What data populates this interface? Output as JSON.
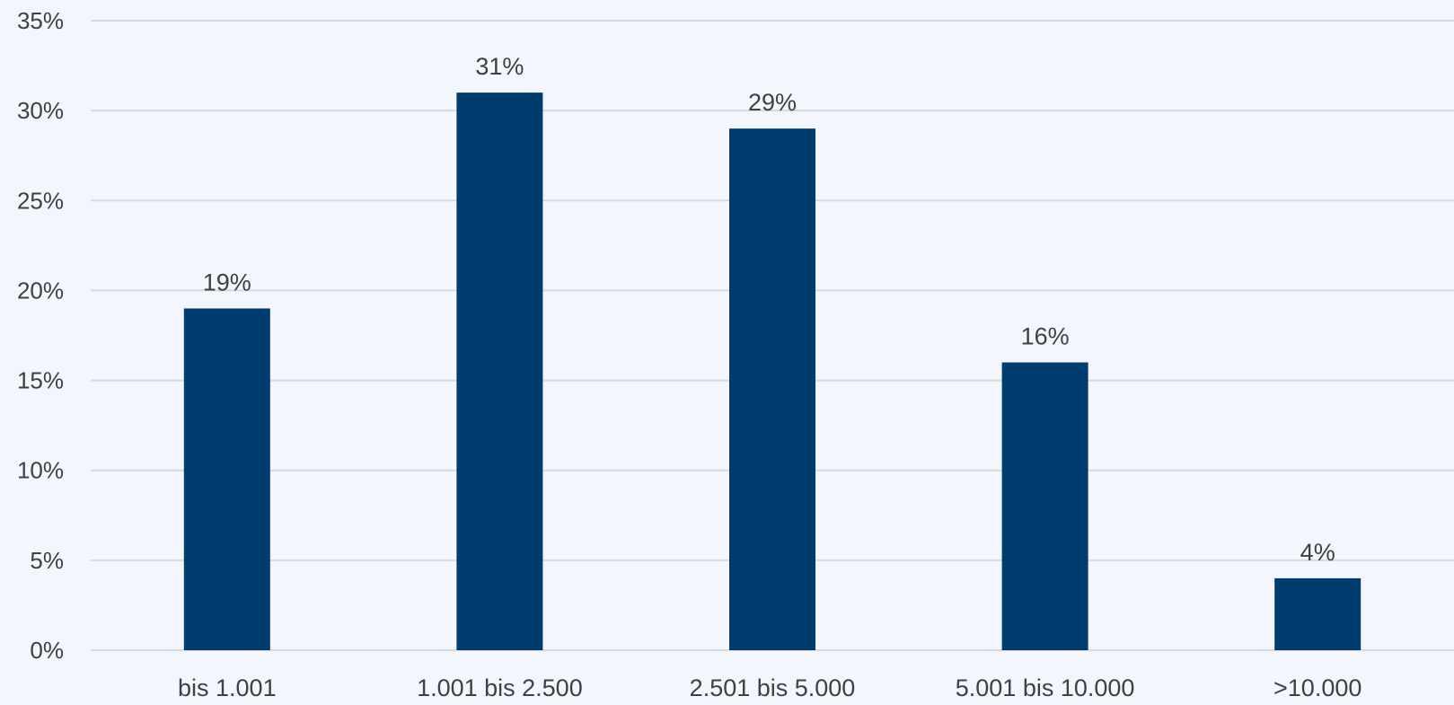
{
  "chart_data": {
    "type": "bar",
    "categories": [
      "bis 1.001",
      "1.001 bis 2.500",
      "2.501 bis 5.000",
      "5.001 bis 10.000",
      ">10.000"
    ],
    "values": [
      19,
      31,
      29,
      16,
      4
    ],
    "data_labels": [
      "19%",
      "31%",
      "29%",
      "16%",
      "4%"
    ],
    "title": "",
    "xlabel": "",
    "ylabel": "",
    "ylim": [
      0,
      35
    ],
    "y_ticks": [
      0,
      5,
      10,
      15,
      20,
      25,
      30,
      35
    ],
    "y_tick_labels": [
      "0%",
      "5%",
      "10%",
      "15%",
      "20%",
      "25%",
      "30%",
      "35%"
    ],
    "grid": true,
    "legend": "none",
    "bar_color": "#003d6e",
    "background_color": "#f3f7fd"
  }
}
